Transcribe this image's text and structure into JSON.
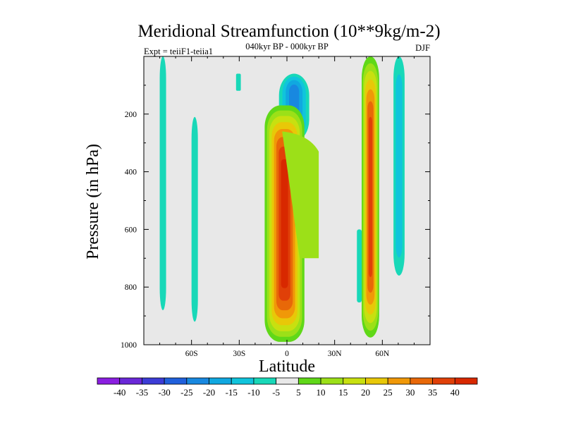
{
  "chart_data": {
    "type": "heatmap",
    "title": "Meridional Streamfunction (10**9kg/m-2)",
    "subtitle": "040kyr BP - 000kyr BP",
    "left_label": "Expt = teiiF1-teiia1",
    "right_label": "DJF",
    "xlabel": "Latitude",
    "ylabel": "Pressure (in hPa)",
    "xlim": [
      -90,
      90
    ],
    "ylim": [
      1000,
      0
    ],
    "x_ticks": [
      {
        "value": -60,
        "label": "60S"
      },
      {
        "value": -30,
        "label": "30S"
      },
      {
        "value": 0,
        "label": "0"
      },
      {
        "value": 30,
        "label": "30N"
      },
      {
        "value": 60,
        "label": "60N"
      }
    ],
    "y_ticks": [
      {
        "value": 200,
        "label": "200"
      },
      {
        "value": 400,
        "label": "400"
      },
      {
        "value": 600,
        "label": "600"
      },
      {
        "value": 800,
        "label": "800"
      },
      {
        "value": 1000,
        "label": "1000"
      }
    ],
    "colorbar": {
      "labels": [
        "-40",
        "-35",
        "-30",
        "-25",
        "-20",
        "-15",
        "-10",
        "-5",
        "5",
        "10",
        "15",
        "20",
        "25",
        "30",
        "35",
        "40"
      ],
      "colors": [
        "#8a1ee0",
        "#6a28d8",
        "#3c3cd6",
        "#2060dc",
        "#1888e0",
        "#10a8e0",
        "#10c4dc",
        "#18d8b8",
        "#e8e8e8",
        "#60d818",
        "#9ce018",
        "#c8e010",
        "#e8c808",
        "#f09808",
        "#e86808",
        "#e04008",
        "#d82800"
      ]
    },
    "features": [
      {
        "name": "southern-cell",
        "lat": [
          -14,
          11
        ],
        "p": [
          170,
          990
        ],
        "peak": 42
      },
      {
        "name": "northern-cell",
        "lat": [
          47,
          58
        ],
        "p": [
          0,
          975
        ],
        "peak": 34
      },
      {
        "name": "tropical-negative",
        "lat": [
          -5,
          14
        ],
        "p": [
          60,
          295
        ],
        "peak": -16
      },
      {
        "name": "polar-negative-s",
        "lat": [
          -80,
          -76
        ],
        "p": [
          0,
          880
        ],
        "peak": -6
      },
      {
        "name": "midlat-negative-s",
        "lat": [
          -60,
          -56
        ],
        "p": [
          210,
          920
        ],
        "peak": -6
      },
      {
        "name": "subpolar-negative-n",
        "lat": [
          67,
          74
        ],
        "p": [
          0,
          760
        ],
        "peak": -10
      }
    ]
  }
}
